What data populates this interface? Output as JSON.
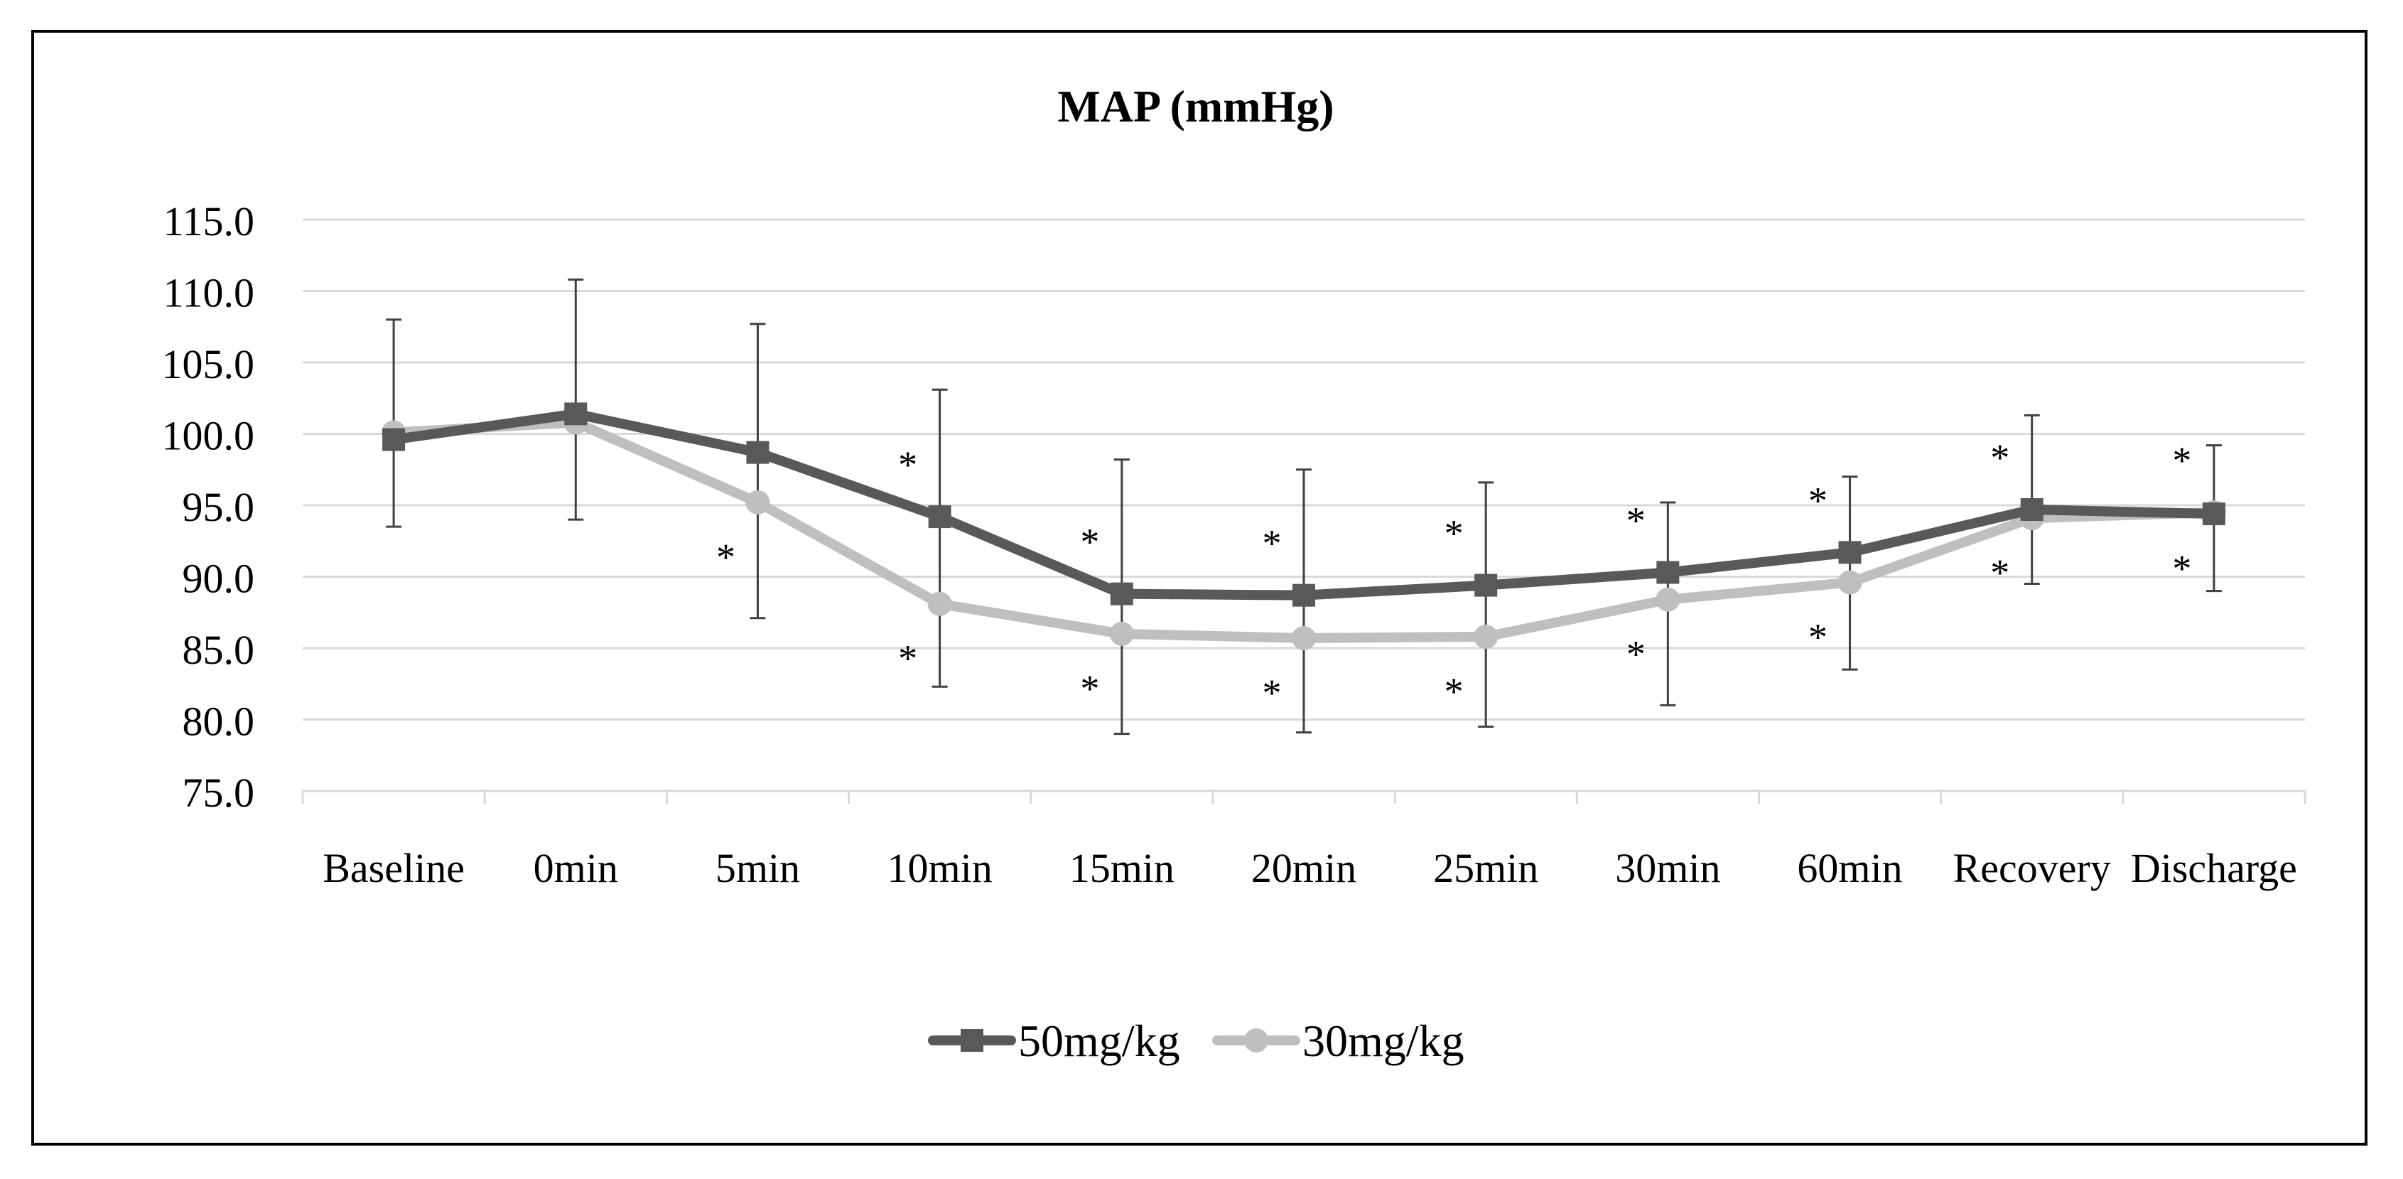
{
  "chart_data": {
    "type": "line",
    "title": "MAP (mmHg)",
    "xlabel": "",
    "ylabel": "",
    "ylim": [
      75.0,
      115.0
    ],
    "yticks": [
      "75.0",
      "80.0",
      "85.0",
      "90.0",
      "95.0",
      "100.0",
      "105.0",
      "110.0",
      "115.0"
    ],
    "categories": [
      "Baseline",
      "0min",
      "5min",
      "10min",
      "15min",
      "20min",
      "25min",
      "30min",
      "60min",
      "Recovery",
      "Discharge"
    ],
    "grid": true,
    "legend_position": "bottom-center",
    "error_bar_series": "30mg/kg",
    "significance_marker": "*",
    "series": [
      {
        "name": "50mg/kg",
        "color": "#595959",
        "marker": "square",
        "values": [
          99.6,
          101.4,
          98.7,
          94.2,
          88.8,
          88.7,
          89.4,
          90.3,
          91.7,
          94.7,
          94.4
        ],
        "significant": [
          false,
          false,
          false,
          true,
          true,
          true,
          true,
          true,
          true,
          true,
          true
        ]
      },
      {
        "name": "30mg/kg",
        "color": "#bfbfbf",
        "marker": "circle",
        "values": [
          100.1,
          100.8,
          95.2,
          88.1,
          86.0,
          85.7,
          85.8,
          88.4,
          89.6,
          94.1,
          94.5
        ],
        "error_low": [
          93.5,
          94.0,
          87.1,
          82.3,
          79.0,
          79.1,
          79.5,
          81.0,
          83.5,
          89.5,
          89.0
        ],
        "error_high": [
          108.0,
          110.8,
          107.7,
          103.1,
          98.2,
          97.5,
          96.6,
          95.2,
          97.0,
          101.3,
          99.2
        ],
        "significant": [
          false,
          false,
          true,
          true,
          true,
          true,
          true,
          true,
          true,
          true,
          true
        ]
      }
    ]
  }
}
